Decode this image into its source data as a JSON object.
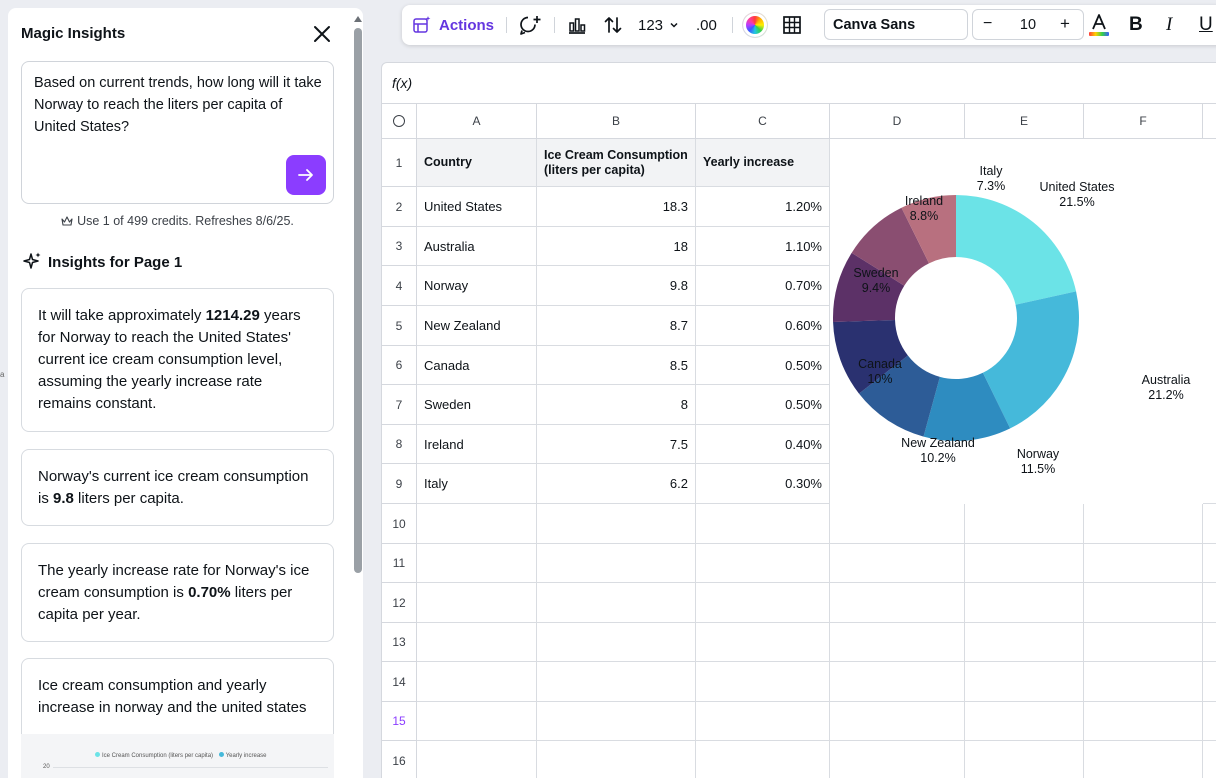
{
  "panel": {
    "title": "Magic Insights",
    "question": "Based on current trends, how long will it take Norway to reach the liters per capita of United States?",
    "credits": "Use 1 of 499 credits. Refreshes 8/6/25.",
    "insights_heading": "Insights for Page 1",
    "cards": [
      {
        "pre": "It will take approximately ",
        "bold": "1214.29",
        "post": " years for Norway to reach the United States' current ice cream consumption level, assuming the yearly increase rate remains constant."
      },
      {
        "pre": "Norway's current ice cream consumption is ",
        "bold": "9.8",
        "post": " liters per capita."
      },
      {
        "pre": "The yearly increase rate for Norway's ice cream consumption is ",
        "bold": "0.70%",
        "post": " liters per capita per year."
      },
      {
        "pre": "Ice cream consumption and yearly increase in norway and the united states",
        "bold": "",
        "post": ""
      }
    ],
    "mini_chart": {
      "legend": [
        "Ice Cream Consumption (liters per capita)",
        "Yearly increase"
      ],
      "tick": "20"
    },
    "edge_char": "a"
  },
  "toolbar": {
    "actions_label": "Actions",
    "number_format": "123",
    "decimals": ".00",
    "font_name": "Canva Sans",
    "font_size": "10",
    "minus": "−",
    "plus": "+",
    "bold": "B",
    "italic": "I",
    "underline": "U"
  },
  "sheet": {
    "fx_label": "f(x)",
    "columns": [
      "A",
      "B",
      "C",
      "D",
      "E",
      "F"
    ],
    "rows": [
      "1",
      "2",
      "3",
      "4",
      "5",
      "6",
      "7",
      "8",
      "9",
      "10",
      "11",
      "12",
      "13",
      "14",
      "15",
      "16"
    ],
    "selected_row": "15",
    "headers": [
      "Country",
      "Ice Cream Consumption (liters per capita)",
      "Yearly increase"
    ],
    "data": [
      [
        "United States",
        "18.3",
        "1.20%"
      ],
      [
        "Australia",
        "18",
        "1.10%"
      ],
      [
        "Norway",
        "9.8",
        "0.70%"
      ],
      [
        "New Zealand",
        "8.7",
        "0.60%"
      ],
      [
        "Canada",
        "8.5",
        "0.50%"
      ],
      [
        "Sweden",
        "8",
        "0.50%"
      ],
      [
        "Ireland",
        "7.5",
        "0.40%"
      ],
      [
        "Italy",
        "6.2",
        "0.30%"
      ]
    ]
  },
  "chart_data": {
    "type": "pie",
    "donut": true,
    "categories": [
      "United States",
      "Australia",
      "Norway",
      "New Zealand",
      "Canada",
      "Sweden",
      "Ireland",
      "Italy"
    ],
    "values": [
      21.5,
      21.2,
      11.5,
      10.2,
      10,
      9.4,
      8.8,
      7.3
    ],
    "value_labels": [
      "21.5%",
      "21.2%",
      "11.5%",
      "10.2%",
      "10%",
      "9.4%",
      "8.8%",
      "7.3%"
    ],
    "colors": [
      "#6be3e7",
      "#45b9da",
      "#2e8cc0",
      "#2d5c97",
      "#2a3170",
      "#5c3167",
      "#8a4e71",
      "#b8707f"
    ]
  }
}
